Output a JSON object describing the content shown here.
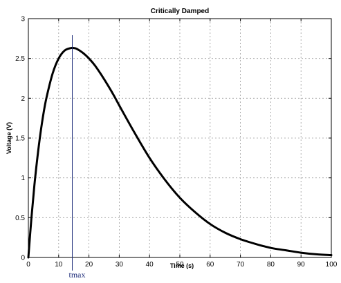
{
  "chart_data": {
    "type": "line",
    "title": "Critically Damped",
    "xlabel": "Time (s)",
    "ylabel": "Voltage (V)",
    "xlim": [
      0,
      100
    ],
    "ylim": [
      0,
      3
    ],
    "xticks": [
      0,
      10,
      20,
      30,
      40,
      50,
      60,
      70,
      80,
      90,
      100
    ],
    "yticks": [
      0,
      0.5,
      1,
      1.5,
      2,
      2.5,
      3
    ],
    "ytick_labels": [
      "0",
      "0.5",
      "1",
      "1.5",
      "2",
      "2.5",
      "3"
    ],
    "grid": true,
    "series": [
      {
        "color": "#000000",
        "x": [
          0,
          1,
          2,
          3,
          4,
          5,
          6,
          8,
          10,
          12,
          14,
          15,
          16,
          18,
          20,
          22,
          25,
          28,
          30,
          35,
          40,
          45,
          50,
          55,
          60,
          65,
          70,
          75,
          80,
          85,
          90,
          95,
          100
        ],
        "y": [
          0,
          0.49,
          0.91,
          1.26,
          1.56,
          1.81,
          2.01,
          2.31,
          2.5,
          2.6,
          2.63,
          2.63,
          2.62,
          2.57,
          2.5,
          2.41,
          2.24,
          2.05,
          1.91,
          1.57,
          1.25,
          0.98,
          0.75,
          0.57,
          0.42,
          0.31,
          0.23,
          0.17,
          0.12,
          0.09,
          0.06,
          0.04,
          0.03
        ]
      }
    ],
    "annotations": [
      {
        "text": "tmax",
        "x": 14.5,
        "color": "#1f2d7a"
      }
    ]
  }
}
